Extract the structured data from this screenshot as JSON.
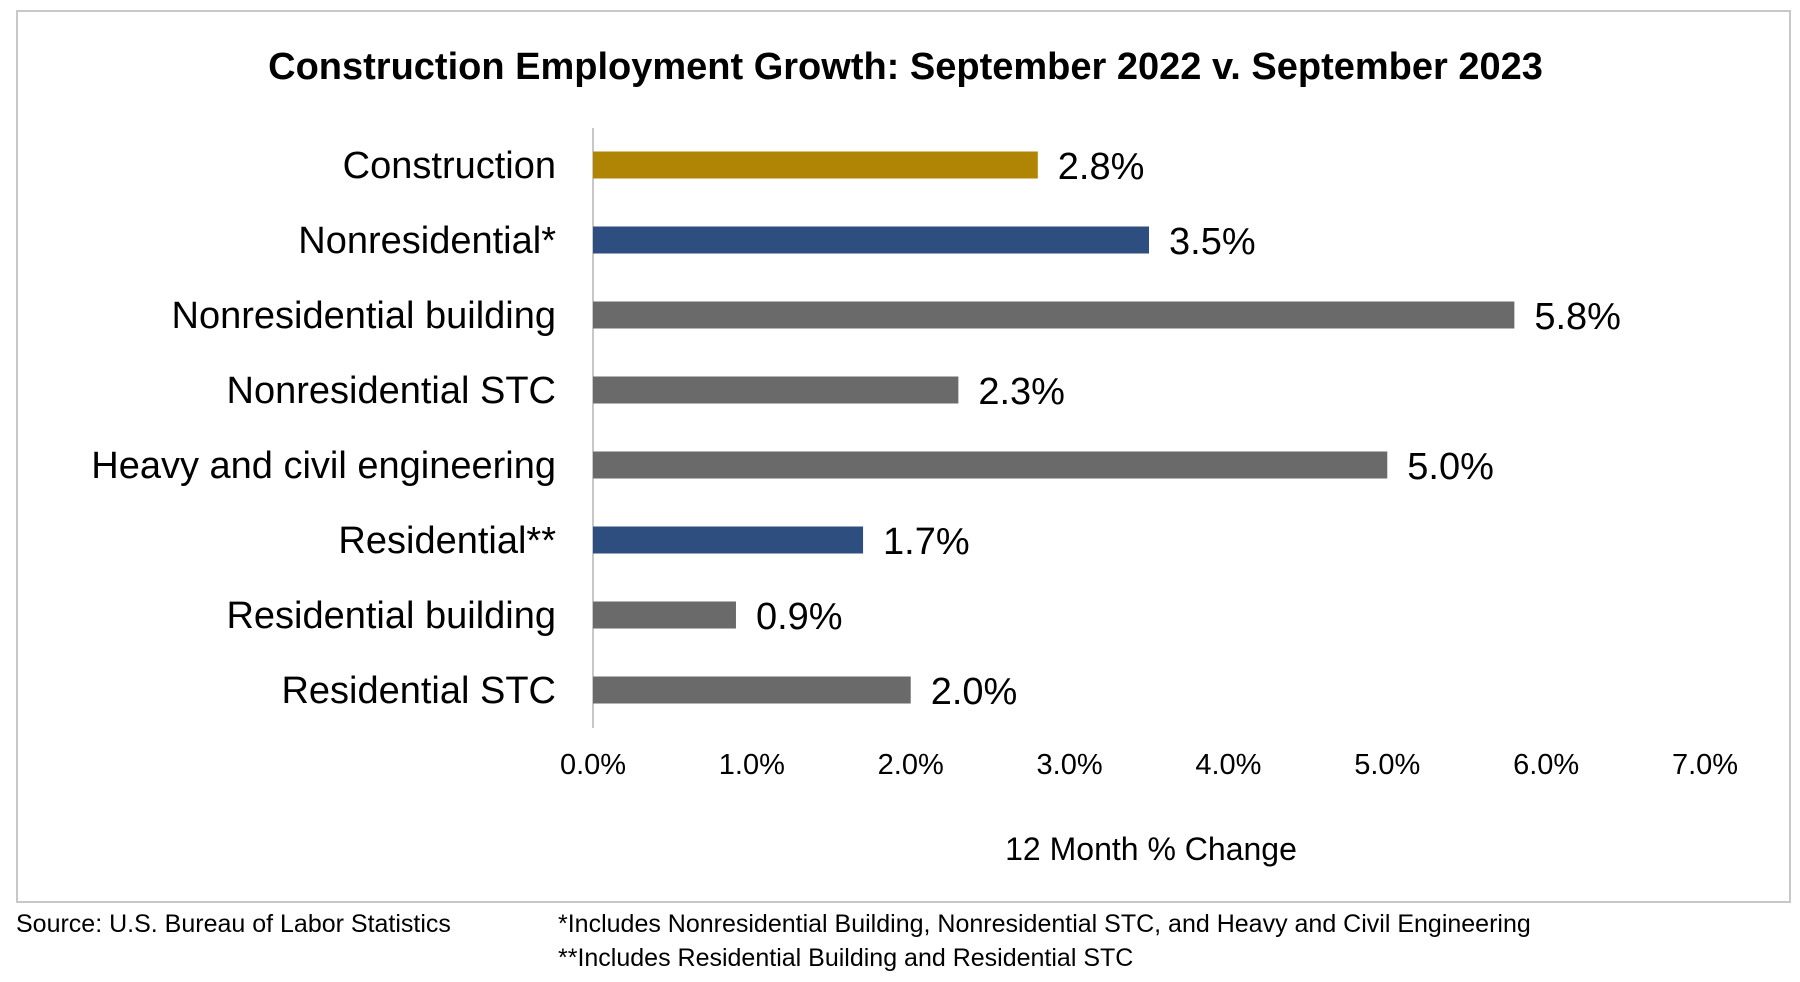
{
  "chart_data": {
    "type": "bar",
    "orientation": "horizontal",
    "title": "Construction Employment Growth: September 2022 v. September 2023",
    "xlabel": "12 Month % Change",
    "ylabel": "",
    "categories": [
      "Construction",
      "Nonresidential*",
      "Nonresidential building",
      "Nonresidential STC",
      "Heavy and civil engineering",
      "Residential**",
      "Residential building",
      "Residential STC"
    ],
    "values": [
      2.8,
      3.5,
      5.8,
      2.3,
      5.0,
      1.7,
      0.9,
      2.0
    ],
    "data_labels": [
      "2.8%",
      "3.5%",
      "5.8%",
      "2.3%",
      "5.0%",
      "1.7%",
      "0.9%",
      "2.0%"
    ],
    "bar_colors": [
      "#B08505",
      "#2E4E7F",
      "#6A6A6A",
      "#6A6A6A",
      "#6A6A6A",
      "#2E4E7F",
      "#6A6A6A",
      "#6A6A6A"
    ],
    "xlim": [
      0,
      7
    ],
    "x_ticks": [
      0,
      1,
      2,
      3,
      4,
      5,
      6,
      7
    ],
    "x_tick_labels": [
      "0.0%",
      "1.0%",
      "2.0%",
      "3.0%",
      "4.0%",
      "5.0%",
      "6.0%",
      "7.0%"
    ],
    "grid": false,
    "legend": "none"
  },
  "footer": {
    "source": "Source:  U.S. Bureau of Labor Statistics",
    "note1": "*Includes Nonresidential Building, Nonresidential STC, and Heavy and Civil Engineering",
    "note2": "**Includes Residential Building and Residential STC"
  },
  "colors": {
    "axis": "#c8c8c8",
    "frame": "#c8c8c8"
  }
}
